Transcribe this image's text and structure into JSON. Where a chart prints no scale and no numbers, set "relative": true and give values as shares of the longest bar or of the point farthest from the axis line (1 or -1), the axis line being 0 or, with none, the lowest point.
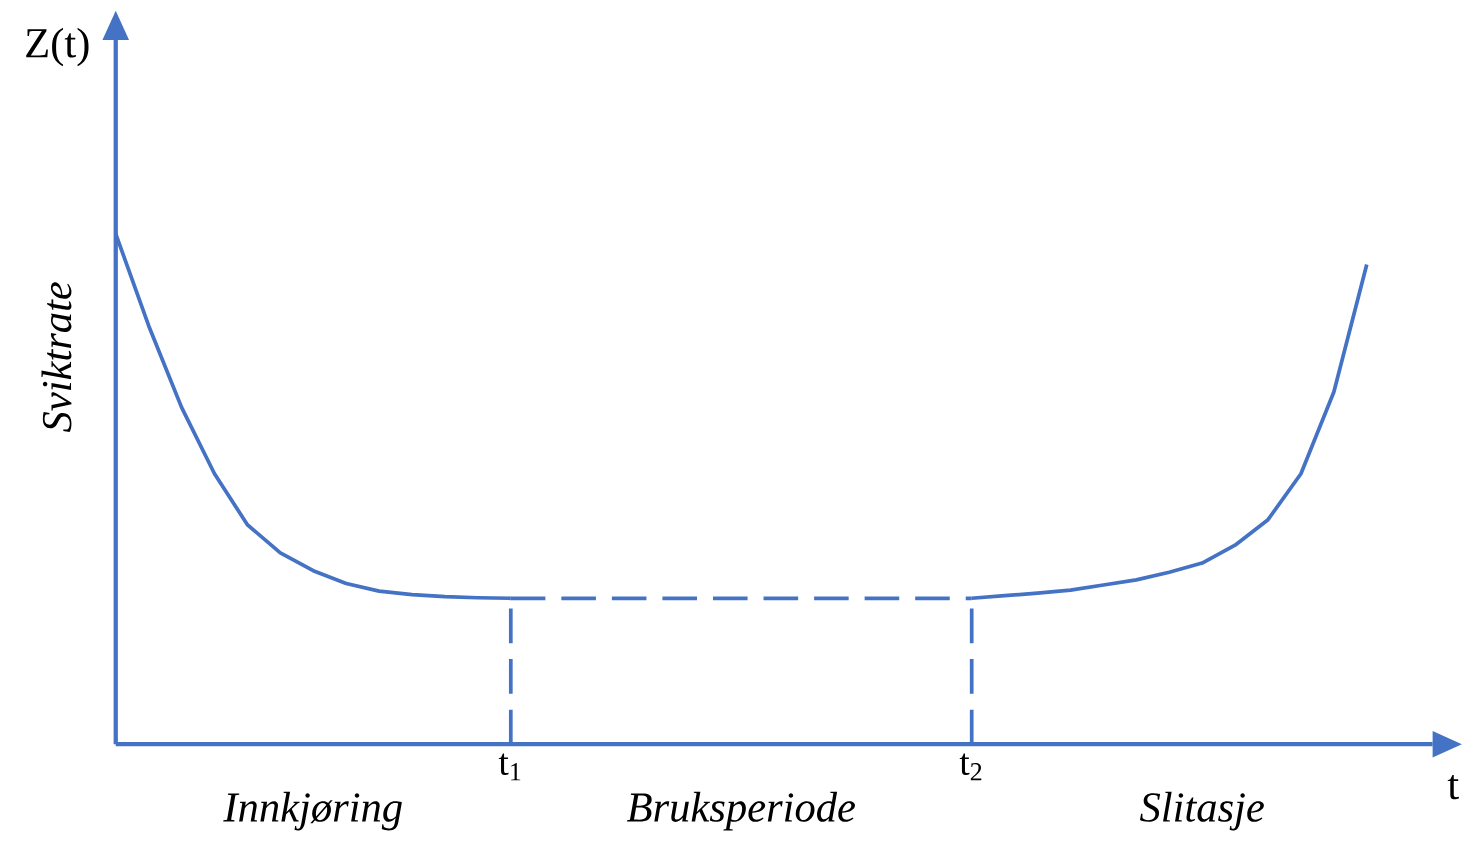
{
  "chart_data": {
    "type": "line",
    "relative": true,
    "xlabel": "t",
    "ylabel": "Z(t)",
    "categories": [
      null,
      null,
      null,
      null,
      null,
      null,
      null,
      null,
      null,
      null,
      null,
      null,
      "t$_{1}$",
      null,
      null,
      null,
      null,
      null,
      null,
      null,
      null,
      null,
      null,
      null,
      null,
      null,
      "t$_{2}$",
      null,
      null,
      null,
      null,
      null,
      null,
      null,
      null,
      null,
      null,
      null,
      null,
      null,
      null
    ],
    "series": [
      {
        "color": "#4472c4",
        "values": [
          1.0,
          0.82,
          0.66,
          0.53,
          0.43,
          0.375,
          0.34,
          0.315,
          0.3,
          0.293,
          0.289,
          0.287,
          0.286,
          null,
          null,
          null,
          null,
          null,
          null,
          null,
          null,
          null,
          null,
          null,
          null,
          null,
          null,
          null,
          null,
          null,
          null,
          null,
          null,
          null,
          null,
          null,
          null,
          null,
          null,
          null,
          null
        ]
      },
      {
        "color": "#4472c4",
        "line_style": "dashed",
        "values": [
          null,
          null,
          null,
          null,
          null,
          null,
          null,
          null,
          null,
          null,
          null,
          null,
          0.286,
          0.286,
          0.286,
          0.286,
          0.286,
          0.286,
          0.286,
          0.286,
          0.286,
          0.286,
          0.286,
          0.286,
          0.286,
          0.286,
          0.286,
          null,
          null,
          null,
          null,
          null,
          null,
          null,
          null,
          null,
          null,
          null,
          null,
          null,
          null
        ]
      },
      {
        "color": "#4472c4",
        "values": [
          null,
          null,
          null,
          null,
          null,
          null,
          null,
          null,
          null,
          null,
          null,
          null,
          null,
          null,
          null,
          null,
          null,
          null,
          null,
          null,
          null,
          null,
          null,
          null,
          null,
          null,
          0.286,
          0.291,
          0.296,
          0.302,
          0.312,
          0.322,
          0.337,
          0.355,
          0.39,
          0.44,
          0.53,
          0.69,
          0.94,
          null,
          null
        ]
      }
    ],
    "ref_lines": [
      {
        "axis": "x",
        "value": "t$_{1}$",
        "color": "#4472c4",
        "line_style": "dashed"
      },
      {
        "axis": "x",
        "value": "t$_{2}$",
        "color": "#4472c4",
        "line_style": "dashed"
      }
    ],
    "annotations": [
      "Sviktrate",
      "Innkjøring",
      "Bruksperiode",
      "Slitasje"
    ]
  }
}
